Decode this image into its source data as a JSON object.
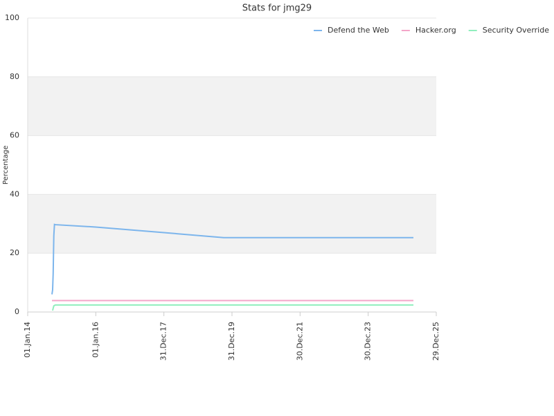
{
  "chart_data": {
    "type": "line",
    "title": "Stats for jmg29",
    "y_label": "Percentage",
    "xlim": [
      "2014-01-01",
      "2025-12-29"
    ],
    "xticks": [
      {
        "value": "2014-01-01",
        "label": "01.Jan.14"
      },
      {
        "value": "2016-01-01",
        "label": "01.Jan.16"
      },
      {
        "value": "2017-12-31",
        "label": "31.Dec.17"
      },
      {
        "value": "2019-12-31",
        "label": "31.Dec.19"
      },
      {
        "value": "2021-12-30",
        "label": "30.Dec.21"
      },
      {
        "value": "2023-12-30",
        "label": "30.Dec.23"
      },
      {
        "value": "2025-12-29",
        "label": "29.Dec.25"
      }
    ],
    "ylim": [
      0,
      100
    ],
    "yticks": [
      0,
      20,
      40,
      60,
      80,
      100
    ],
    "grid": true,
    "bands": [
      [
        20,
        40
      ],
      [
        60,
        80
      ]
    ],
    "band_color": "#f2f2f2",
    "legend": "top-right",
    "series": [
      {
        "name": "Defend the Web",
        "color": "#7cb5ec",
        "x": [
          "2014-09-18",
          "2014-09-25",
          "2014-10-01",
          "2014-10-08",
          "2014-10-15",
          "2014-10-25",
          "2016-01-01",
          "2018-01-01",
          "2019-10-03",
          "2025-04-28"
        ],
        "values": [
          6,
          7.5,
          13,
          26,
          29.8,
          29.7,
          28.9,
          27,
          25.3,
          25.3
        ]
      },
      {
        "name": "Hacker.org",
        "color": "#f4a6c8",
        "x": [
          "2014-09-18",
          "2025-04-28"
        ],
        "values": [
          3.9,
          3.9
        ]
      },
      {
        "name": "Security Override",
        "color": "#90eebd",
        "x": [
          "2014-09-25",
          "2014-10-08",
          "2014-10-25",
          "2025-04-28"
        ],
        "values": [
          0.5,
          2.1,
          2.4,
          2.4
        ]
      }
    ]
  }
}
